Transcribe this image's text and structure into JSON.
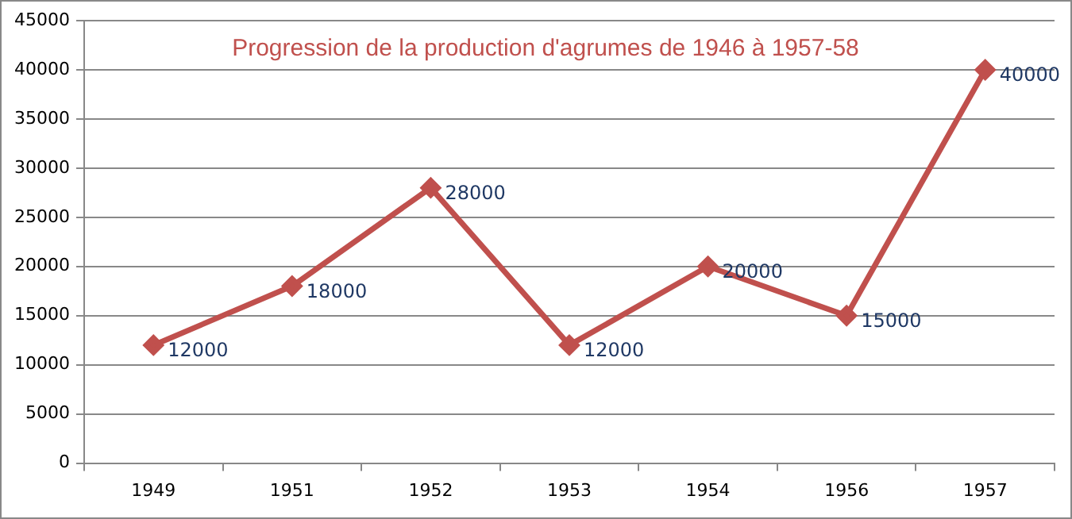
{
  "chart_data": {
    "type": "line",
    "title": "Progression de la production d'agrumes de 1946 à 1957-58",
    "categories": [
      "1949",
      "1951",
      "1952",
      "1953",
      "1954",
      "1956",
      "1957"
    ],
    "series": [
      {
        "color": "#c0504d",
        "values": [
          12000,
          18000,
          28000,
          12000,
          20000,
          15000,
          40000
        ]
      }
    ],
    "ylim": [
      0,
      45000
    ],
    "yticks": [
      0,
      5000,
      10000,
      15000,
      20000,
      25000,
      30000,
      35000,
      40000,
      45000
    ],
    "grid": "y",
    "legend": false,
    "marker": "diamond",
    "line_style": "solid",
    "data_labels": true
  }
}
